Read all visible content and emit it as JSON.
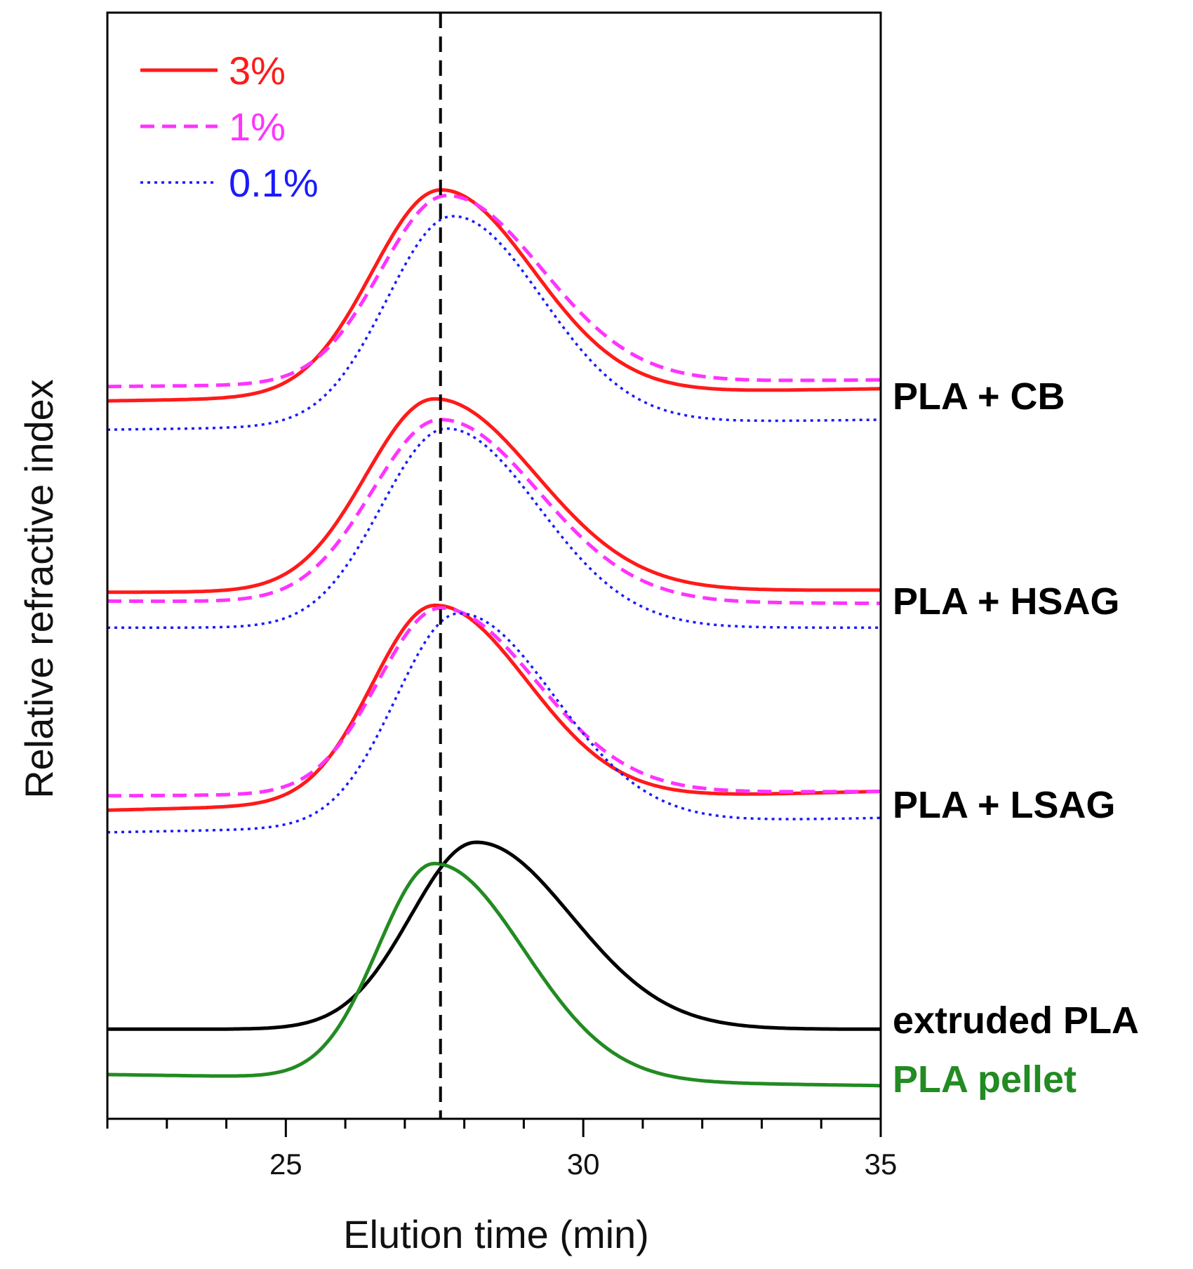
{
  "chart_data": {
    "type": "line",
    "title": "",
    "xlabel": "Elution time (min)",
    "ylabel": "Relative refractive index",
    "xlim": [
      22,
      35
    ],
    "ylim": [
      0,
      100
    ],
    "x_ticks": [
      25,
      30,
      35
    ],
    "x_minor_step": 1,
    "grid": false,
    "reference_line": {
      "x": 27.6,
      "style": "dashed",
      "color": "#000000"
    },
    "legend": {
      "position": "top-left",
      "entries": [
        {
          "label": "3%",
          "color": "#ff1a1a",
          "style": "solid"
        },
        {
          "label": "1%",
          "color": "#ff33ff",
          "style": "dashed"
        },
        {
          "label": "0.1%",
          "color": "#1a1aff",
          "style": "dotted"
        }
      ]
    },
    "groups": [
      {
        "label": "PLA + CB",
        "label_color": "#000000",
        "series": [
          {
            "name": "3%",
            "color": "#ff1a1a",
            "style": "solid",
            "baseline": 64.9,
            "end": 66.0,
            "peak_x": 27.6,
            "height": 18.6,
            "sigma_left": 1.15,
            "sigma_right": 1.55
          },
          {
            "name": "1%",
            "color": "#ff33ff",
            "style": "dashed",
            "baseline": 66.2,
            "end": 66.8,
            "peak_x": 27.7,
            "height": 17.0,
            "sigma_left": 1.1,
            "sigma_right": 1.6
          },
          {
            "name": "0.1%",
            "color": "#1a1aff",
            "style": "dotted",
            "baseline": 62.3,
            "end": 63.2,
            "peak_x": 27.8,
            "height": 18.9,
            "sigma_left": 1.1,
            "sigma_right": 1.5
          }
        ]
      },
      {
        "label": "PLA + HSAG",
        "label_color": "#000000",
        "series": [
          {
            "name": "3%",
            "color": "#ff1a1a",
            "style": "solid",
            "baseline": 47.6,
            "end": 47.8,
            "peak_x": 27.5,
            "height": 17.4,
            "sigma_left": 1.15,
            "sigma_right": 1.7
          },
          {
            "name": "1%",
            "color": "#ff33ff",
            "style": "dashed",
            "baseline": 46.8,
            "end": 46.6,
            "peak_x": 27.6,
            "height": 16.5,
            "sigma_left": 1.15,
            "sigma_right": 1.65
          },
          {
            "name": "0.1%",
            "color": "#1a1aff",
            "style": "dotted",
            "baseline": 44.4,
            "end": 44.4,
            "peak_x": 27.7,
            "height": 18.0,
            "sigma_left": 1.1,
            "sigma_right": 1.55
          }
        ]
      },
      {
        "label": "PLA + LSAG",
        "label_color": "#000000",
        "series": [
          {
            "name": "3%",
            "color": "#ff1a1a",
            "style": "solid",
            "baseline": 27.9,
            "end": 29.6,
            "peak_x": 27.5,
            "height": 17.8,
            "sigma_left": 1.05,
            "sigma_right": 1.55
          },
          {
            "name": "1%",
            "color": "#ff33ff",
            "style": "dashed",
            "baseline": 29.2,
            "end": 29.6,
            "peak_x": 27.6,
            "height": 16.8,
            "sigma_left": 1.05,
            "sigma_right": 1.6
          },
          {
            "name": "0.1%",
            "color": "#1a1aff",
            "style": "dotted",
            "baseline": 25.9,
            "end": 27.2,
            "peak_x": 27.9,
            "height": 19.2,
            "sigma_left": 1.05,
            "sigma_right": 1.6
          }
        ]
      },
      {
        "label": "extruded PLA",
        "label_color": "#000000",
        "series": [
          {
            "name": "extruded PLA",
            "color": "#000000",
            "style": "solid",
            "baseline": 8.1,
            "end": 8.1,
            "peak_x": 28.2,
            "height": 16.9,
            "sigma_left": 1.1,
            "sigma_right": 1.6
          }
        ]
      },
      {
        "label": "PLA pellet",
        "label_color": "#228b22",
        "series": [
          {
            "name": "PLA pellet",
            "color": "#228b22",
            "style": "solid",
            "baseline": 4.0,
            "end": 3.0,
            "peak_x": 27.5,
            "height": 19.5,
            "sigma_left": 0.95,
            "sigma_right": 1.5
          }
        ]
      }
    ]
  }
}
